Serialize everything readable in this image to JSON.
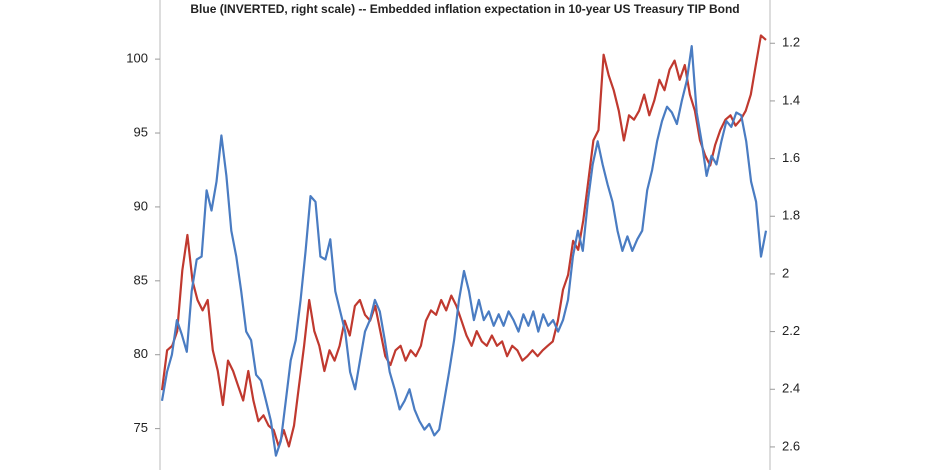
{
  "chart_data": {
    "type": "line",
    "title": "Blue (INVERTED, right scale) -- Embedded inflation expectation in 10-year US Treasury TIP Bond",
    "ylim": [
      72.2,
      104
    ],
    "yticks": [
      75,
      80,
      85,
      90,
      95,
      100
    ],
    "y2lim": [
      1.05,
      2.68
    ],
    "y2ticks": [
      1.2,
      1.4,
      1.6,
      1.8,
      2,
      2.2,
      2.4,
      2.6
    ],
    "y2_inverted": true,
    "series": [
      {
        "color": "#c0392f",
        "values": [
          77.6,
          80.3,
          80.6,
          81.6,
          85.7,
          88.1,
          85.0,
          83.7,
          83.0,
          83.7,
          80.3,
          78.9,
          76.6,
          79.6,
          78.9,
          77.9,
          76.9,
          78.9,
          76.9,
          75.5,
          75.9,
          75.2,
          74.9,
          73.8,
          74.9,
          73.8,
          75.2,
          77.9,
          80.6,
          83.7,
          81.6,
          80.6,
          78.9,
          80.3,
          79.6,
          80.6,
          82.3,
          81.3,
          83.3,
          83.7,
          82.7,
          82.3,
          83.3,
          81.6,
          79.9,
          79.3,
          80.3,
          80.6,
          79.6,
          80.3,
          79.9,
          80.6,
          82.3,
          83.0,
          82.7,
          83.7,
          83.0,
          84.0,
          83.3,
          82.3,
          81.3,
          80.6,
          81.6,
          80.9,
          80.6,
          81.3,
          80.6,
          80.9,
          79.9,
          80.6,
          80.3,
          79.6,
          79.9,
          80.3,
          79.9,
          80.3,
          80.6,
          80.9,
          82.3,
          84.4,
          85.4,
          87.7,
          87.1,
          89.1,
          91.8,
          94.5,
          95.2,
          100.3,
          98.9,
          97.9,
          96.5,
          94.5,
          96.2,
          95.9,
          96.5,
          97.6,
          96.2,
          97.2,
          98.6,
          97.9,
          99.3,
          99.9,
          98.6,
          99.6,
          97.6,
          96.5,
          94.5,
          93.5,
          92.8,
          94.2,
          95.2,
          95.9,
          96.2,
          95.5,
          95.9,
          96.5,
          97.6,
          99.6,
          101.6,
          101.3
        ]
      },
      {
        "color": "#4a7cc2",
        "axis": "y2",
        "values": [
          2.44,
          2.34,
          2.28,
          2.16,
          2.21,
          2.27,
          2.06,
          1.95,
          1.94,
          1.71,
          1.78,
          1.68,
          1.52,
          1.66,
          1.85,
          1.94,
          2.06,
          2.2,
          2.23,
          2.35,
          2.37,
          2.44,
          2.51,
          2.63,
          2.58,
          2.44,
          2.3,
          2.23,
          2.09,
          1.92,
          1.73,
          1.75,
          1.94,
          1.95,
          1.88,
          2.06,
          2.13,
          2.2,
          2.34,
          2.4,
          2.3,
          2.2,
          2.16,
          2.09,
          2.13,
          2.23,
          2.34,
          2.4,
          2.47,
          2.44,
          2.4,
          2.47,
          2.51,
          2.54,
          2.52,
          2.56,
          2.54,
          2.44,
          2.34,
          2.23,
          2.09,
          1.99,
          2.06,
          2.16,
          2.09,
          2.16,
          2.13,
          2.18,
          2.14,
          2.18,
          2.13,
          2.16,
          2.2,
          2.14,
          2.18,
          2.13,
          2.2,
          2.14,
          2.18,
          2.16,
          2.2,
          2.16,
          2.09,
          1.94,
          1.85,
          1.92,
          1.75,
          1.62,
          1.54,
          1.62,
          1.69,
          1.75,
          1.85,
          1.92,
          1.87,
          1.92,
          1.88,
          1.85,
          1.71,
          1.64,
          1.54,
          1.47,
          1.42,
          1.44,
          1.48,
          1.4,
          1.33,
          1.21,
          1.44,
          1.54,
          1.66,
          1.59,
          1.62,
          1.54,
          1.47,
          1.49,
          1.44,
          1.45,
          1.54,
          1.68,
          1.75,
          1.94,
          1.85
        ]
      }
    ]
  }
}
